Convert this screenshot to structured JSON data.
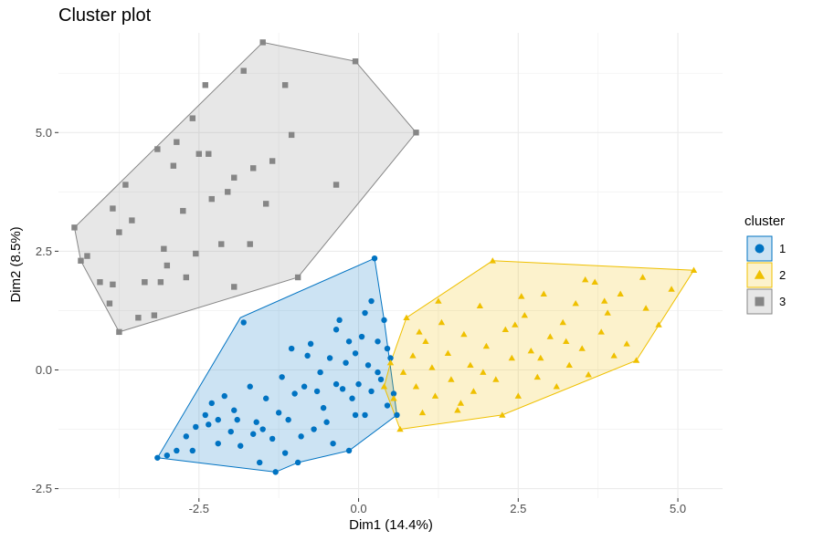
{
  "chart_data": {
    "type": "scatter",
    "title": "Cluster plot",
    "xlabel": "Dim1 (14.4%)",
    "ylabel": "Dim2 (8.5%)",
    "xlim": [
      -4.7,
      5.7
    ],
    "ylim": [
      -2.7,
      7.1
    ],
    "x_ticks": [
      -2.5,
      0.0,
      2.5,
      5.0
    ],
    "x_tick_labels": [
      "-2.5",
      "0.0",
      "2.5",
      "5.0"
    ],
    "y_ticks": [
      -2.5,
      0.0,
      2.5,
      5.0
    ],
    "y_tick_labels": [
      "-2.5",
      "0.0",
      "2.5",
      "5.0"
    ],
    "grid": true,
    "legend_position": "right",
    "legend_title": "cluster",
    "series": [
      {
        "name": "1",
        "marker": "circle",
        "color": "#0073C2",
        "fill": "#0073C2",
        "hull": [
          [
            -3.15,
            -1.85
          ],
          [
            -1.3,
            -2.15
          ],
          [
            -0.95,
            -1.95
          ],
          [
            -0.15,
            -1.7
          ],
          [
            0.6,
            -0.95
          ],
          [
            0.4,
            1.05
          ],
          [
            0.25,
            2.35
          ],
          [
            -1.85,
            1.1
          ]
        ],
        "points": [
          [
            -3.15,
            -1.85
          ],
          [
            -3.0,
            -1.8
          ],
          [
            -2.85,
            -1.7
          ],
          [
            -2.7,
            -1.4
          ],
          [
            -2.55,
            -1.2
          ],
          [
            -2.4,
            -0.95
          ],
          [
            -2.3,
            -0.7
          ],
          [
            -2.2,
            -1.05
          ],
          [
            -2.1,
            -0.55
          ],
          [
            -2.0,
            -1.3
          ],
          [
            -1.95,
            -0.85
          ],
          [
            -1.85,
            -1.6
          ],
          [
            -1.8,
            1.0
          ],
          [
            -1.7,
            -0.35
          ],
          [
            -1.6,
            -1.1
          ],
          [
            -1.55,
            -1.95
          ],
          [
            -1.45,
            -0.6
          ],
          [
            -1.35,
            -1.45
          ],
          [
            -1.3,
            -2.15
          ],
          [
            -1.2,
            -0.15
          ],
          [
            -1.1,
            -1.05
          ],
          [
            -1.05,
            0.45
          ],
          [
            -0.95,
            -1.95
          ],
          [
            -0.85,
            -0.35
          ],
          [
            -0.75,
            0.55
          ],
          [
            -0.7,
            -1.25
          ],
          [
            -0.6,
            -0.05
          ],
          [
            -0.55,
            -0.8
          ],
          [
            -0.45,
            0.25
          ],
          [
            -0.4,
            -1.55
          ],
          [
            -0.35,
            0.85
          ],
          [
            -0.25,
            -0.4
          ],
          [
            -0.2,
            0.15
          ],
          [
            -0.15,
            -1.7
          ],
          [
            -0.1,
            -0.6
          ],
          [
            -0.05,
            0.35
          ],
          [
            0.0,
            -0.3
          ],
          [
            0.05,
            0.7
          ],
          [
            0.1,
            -0.95
          ],
          [
            0.15,
            0.1
          ],
          [
            0.2,
            -0.45
          ],
          [
            0.25,
            2.35
          ],
          [
            0.3,
            0.6
          ],
          [
            0.35,
            -0.2
          ],
          [
            0.4,
            1.05
          ],
          [
            0.45,
            -0.75
          ],
          [
            0.5,
            0.25
          ],
          [
            0.55,
            -0.5
          ],
          [
            0.6,
            -0.95
          ],
          [
            0.2,
            1.45
          ],
          [
            0.1,
            1.2
          ],
          [
            -0.3,
            1.05
          ],
          [
            -0.8,
            0.3
          ],
          [
            -1.0,
            -0.5
          ],
          [
            -1.5,
            -1.25
          ],
          [
            -2.2,
            -1.55
          ],
          [
            -2.6,
            -1.7
          ],
          [
            -1.9,
            -1.05
          ],
          [
            -0.9,
            -1.4
          ],
          [
            -0.5,
            -1.1
          ],
          [
            -1.25,
            -0.9
          ],
          [
            -0.65,
            -0.45
          ],
          [
            0.3,
            -0.05
          ],
          [
            -0.15,
            0.6
          ],
          [
            0.45,
            0.45
          ],
          [
            -1.65,
            -1.35
          ],
          [
            -2.35,
            -1.15
          ],
          [
            -0.35,
            -0.3
          ],
          [
            -0.05,
            -0.95
          ],
          [
            -1.15,
            -1.75
          ]
        ]
      },
      {
        "name": "2",
        "marker": "triangle",
        "color": "#EFC000",
        "fill": "#EFC000",
        "hull": [
          [
            0.65,
            -1.25
          ],
          [
            2.25,
            -0.95
          ],
          [
            4.35,
            0.2
          ],
          [
            5.25,
            2.1
          ],
          [
            2.1,
            2.3
          ],
          [
            0.75,
            1.1
          ],
          [
            0.5,
            0.15
          ],
          [
            0.4,
            -0.35
          ]
        ],
        "points": [
          [
            0.4,
            -0.35
          ],
          [
            0.5,
            0.15
          ],
          [
            0.55,
            -0.6
          ],
          [
            0.65,
            -1.25
          ],
          [
            0.75,
            1.1
          ],
          [
            0.85,
            0.3
          ],
          [
            0.9,
            -0.35
          ],
          [
            1.0,
            -0.9
          ],
          [
            1.05,
            0.6
          ],
          [
            1.15,
            0.05
          ],
          [
            1.2,
            -0.55
          ],
          [
            1.3,
            1.0
          ],
          [
            1.4,
            0.35
          ],
          [
            1.45,
            -0.2
          ],
          [
            1.55,
            -0.85
          ],
          [
            1.65,
            0.75
          ],
          [
            1.75,
            0.1
          ],
          [
            1.8,
            -0.45
          ],
          [
            1.9,
            1.35
          ],
          [
            2.0,
            0.5
          ],
          [
            2.1,
            2.3
          ],
          [
            2.15,
            -0.2
          ],
          [
            2.25,
            -0.95
          ],
          [
            2.3,
            0.85
          ],
          [
            2.4,
            0.25
          ],
          [
            2.5,
            -0.55
          ],
          [
            2.6,
            1.15
          ],
          [
            2.7,
            0.4
          ],
          [
            2.8,
            -0.15
          ],
          [
            2.9,
            1.6
          ],
          [
            3.0,
            0.7
          ],
          [
            3.1,
            -0.35
          ],
          [
            3.2,
            1.0
          ],
          [
            3.3,
            0.1
          ],
          [
            3.4,
            1.4
          ],
          [
            3.5,
            0.45
          ],
          [
            3.6,
            -0.1
          ],
          [
            3.7,
            1.85
          ],
          [
            3.8,
            0.8
          ],
          [
            3.9,
            1.2
          ],
          [
            4.0,
            0.3
          ],
          [
            4.1,
            1.6
          ],
          [
            4.2,
            0.55
          ],
          [
            4.35,
            0.2
          ],
          [
            4.5,
            1.3
          ],
          [
            4.7,
            0.95
          ],
          [
            4.9,
            1.7
          ],
          [
            5.25,
            2.1
          ],
          [
            1.25,
            1.45
          ],
          [
            2.55,
            1.55
          ],
          [
            3.55,
            1.9
          ],
          [
            0.7,
            -0.05
          ],
          [
            1.6,
            -0.7
          ],
          [
            2.85,
            0.25
          ],
          [
            3.25,
            0.6
          ],
          [
            4.45,
            1.95
          ],
          [
            1.95,
            -0.05
          ],
          [
            0.95,
            0.8
          ],
          [
            2.45,
            0.95
          ],
          [
            3.85,
            1.45
          ]
        ]
      },
      {
        "name": "3",
        "marker": "square",
        "color": "#868686",
        "fill": "#868686",
        "hull": [
          [
            -3.75,
            0.8
          ],
          [
            -0.95,
            1.95
          ],
          [
            0.9,
            5.0
          ],
          [
            -0.05,
            6.5
          ],
          [
            -1.5,
            6.9
          ],
          [
            -4.45,
            3.0
          ],
          [
            -4.35,
            2.3
          ]
        ],
        "points": [
          [
            -4.45,
            3.0
          ],
          [
            -4.35,
            2.3
          ],
          [
            -4.25,
            2.4
          ],
          [
            -4.05,
            1.85
          ],
          [
            -3.9,
            1.4
          ],
          [
            -3.85,
            3.4
          ],
          [
            -3.75,
            2.9
          ],
          [
            -3.75,
            0.8
          ],
          [
            -3.65,
            3.9
          ],
          [
            -3.55,
            3.15
          ],
          [
            -3.45,
            1.1
          ],
          [
            -3.35,
            1.85
          ],
          [
            -3.2,
            1.15
          ],
          [
            -3.1,
            1.85
          ],
          [
            -3.0,
            2.2
          ],
          [
            -2.9,
            4.3
          ],
          [
            -2.85,
            4.8
          ],
          [
            -2.7,
            1.95
          ],
          [
            -2.6,
            5.3
          ],
          [
            -2.5,
            4.55
          ],
          [
            -2.4,
            6.0
          ],
          [
            -2.3,
            3.6
          ],
          [
            -2.15,
            2.65
          ],
          [
            -2.05,
            3.75
          ],
          [
            -1.95,
            4.05
          ],
          [
            -1.8,
            6.3
          ],
          [
            -1.7,
            2.65
          ],
          [
            -1.65,
            4.25
          ],
          [
            -1.5,
            6.9
          ],
          [
            -1.35,
            4.4
          ],
          [
            -1.15,
            6.0
          ],
          [
            -1.05,
            4.95
          ],
          [
            -0.95,
            1.95
          ],
          [
            -0.35,
            3.9
          ],
          [
            -0.05,
            6.5
          ],
          [
            0.9,
            5.0
          ],
          [
            -2.75,
            3.35
          ],
          [
            -3.15,
            4.65
          ],
          [
            -2.35,
            4.55
          ],
          [
            -3.35,
            1.85
          ],
          [
            -1.95,
            1.75
          ],
          [
            -2.55,
            2.45
          ],
          [
            -3.05,
            2.55
          ],
          [
            -3.85,
            1.8
          ],
          [
            -1.45,
            3.5
          ]
        ]
      }
    ]
  }
}
